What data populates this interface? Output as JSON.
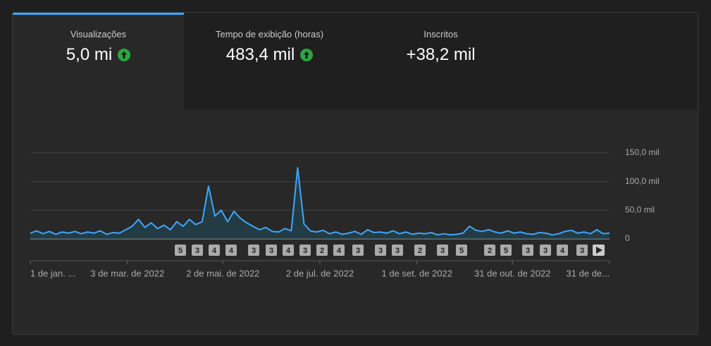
{
  "tabs": [
    {
      "title": "Visualizações",
      "value": "5,0 mi",
      "trend": "up"
    },
    {
      "title": "Tempo de exibição (horas)",
      "value": "483,4 mil",
      "trend": "up"
    },
    {
      "title": "Inscritos",
      "value": "+38,2 mil"
    }
  ],
  "chart_data": {
    "type": "line",
    "color": "#3ea6ff",
    "x": [
      0,
      4,
      8,
      12,
      16,
      20,
      24,
      28,
      32,
      36,
      40,
      44,
      48,
      52,
      56,
      60,
      64,
      68,
      72,
      76,
      80,
      84,
      88,
      92,
      96,
      100,
      104,
      108,
      112,
      116,
      120,
      124,
      128,
      132,
      136,
      140,
      144,
      148,
      152,
      156,
      160,
      164,
      168,
      172,
      176,
      180,
      184,
      188,
      192,
      196,
      200,
      204,
      208,
      212,
      216,
      220,
      224,
      228,
      232,
      236,
      240,
      244,
      248,
      252,
      256,
      260,
      264,
      268,
      272,
      276,
      280,
      284,
      288,
      292,
      296,
      300,
      304,
      308,
      312,
      316,
      320,
      324,
      328,
      332,
      336,
      340,
      344,
      348,
      352,
      356,
      360,
      364
    ],
    "values": [
      10000,
      14000,
      9000,
      13000,
      8000,
      12000,
      10000,
      13000,
      9000,
      12000,
      10000,
      14000,
      8000,
      11000,
      10000,
      16000,
      22000,
      34000,
      20000,
      28000,
      18000,
      24000,
      16000,
      30000,
      22000,
      34000,
      25000,
      30000,
      92000,
      40000,
      50000,
      30000,
      48000,
      36000,
      28000,
      22000,
      16000,
      20000,
      13000,
      12000,
      18000,
      14000,
      124000,
      26000,
      14000,
      12000,
      15000,
      9000,
      12000,
      8000,
      10000,
      13000,
      8000,
      16000,
      11000,
      12000,
      10000,
      14000,
      9000,
      12000,
      8000,
      10000,
      9000,
      11000,
      7000,
      9000,
      7000,
      8000,
      10000,
      22000,
      15000,
      13000,
      16000,
      12000,
      10000,
      14000,
      10000,
      12000,
      9000,
      8000,
      11000,
      10000,
      7000,
      9000,
      13000,
      15000,
      10000,
      12000,
      9000,
      16000,
      9000,
      10000
    ],
    "xlim": [
      0,
      364
    ],
    "xticks": [
      {
        "value": 0,
        "label": "1 de jan. ..."
      },
      {
        "value": 61,
        "label": "3 de mar. de 2022"
      },
      {
        "value": 121,
        "label": "2 de mai. de 2022"
      },
      {
        "value": 182,
        "label": "2 de jul. de 2022"
      },
      {
        "value": 243,
        "label": "1 de set. de 2022"
      },
      {
        "value": 303,
        "label": "31 de out. de 2022"
      },
      {
        "value": 364,
        "label": "31 de de..."
      }
    ],
    "ylim": [
      0,
      150000
    ],
    "yticks": [
      0,
      {
        "value": 50000,
        "label": "50,0 mil"
      },
      {
        "value": 100000,
        "label": "100,0 mil"
      },
      {
        "value": 150000,
        "label": "150,0 mil"
      }
    ],
    "grid": true,
    "markers": [
      "5",
      "3",
      "4",
      "4",
      "3",
      "3",
      "4",
      "3",
      "2",
      "4",
      "3",
      "3",
      "3",
      "2",
      "3",
      "5",
      "2",
      "5",
      "3",
      "3",
      "4",
      "3"
    ]
  }
}
